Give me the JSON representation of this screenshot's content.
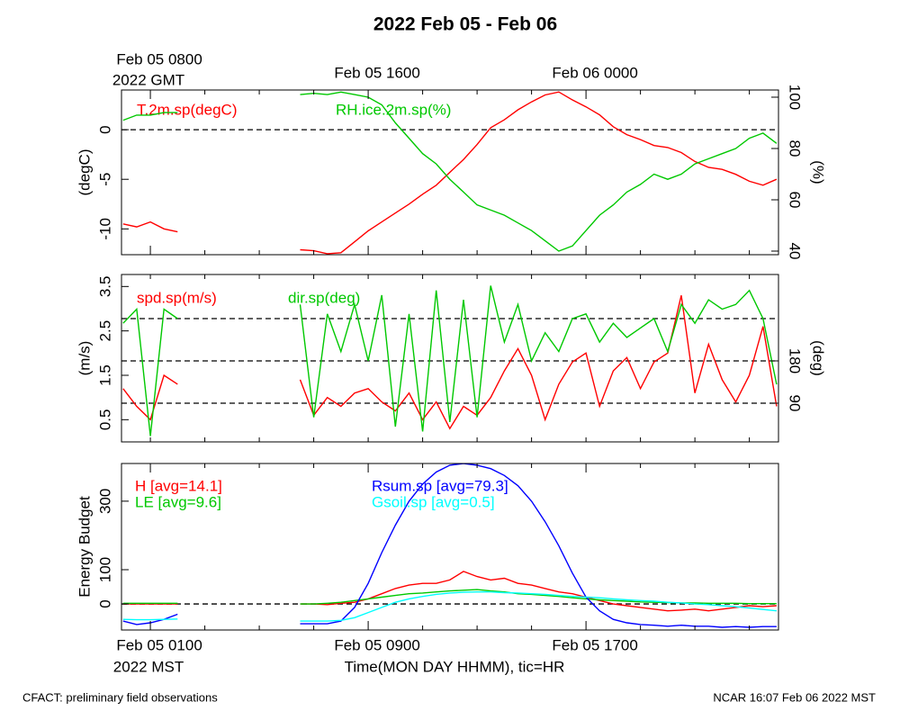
{
  "title": "2022 Feb 05 - Feb 06",
  "footer_left": "CFACT: preliminary field observations",
  "footer_right": "NCAR 16:07 Feb 06 2022 MST",
  "chart_data": [
    {
      "type": "line",
      "x": [
        -1,
        -0.5,
        0,
        0.5,
        1,
        3,
        5.5,
        6,
        6.5,
        7,
        7.5,
        8,
        8.5,
        9,
        9.5,
        10,
        10.5,
        11,
        11.5,
        12,
        12.5,
        13,
        13.5,
        14,
        14.5,
        15,
        15.5,
        16,
        16.5,
        17,
        17.5,
        18,
        18.5,
        19,
        19.5,
        20,
        20.5,
        21,
        21.5,
        22,
        22.5,
        23
      ],
      "xlim": [
        -1.06,
        23.07
      ],
      "xticks": [
        {
          "value": 0,
          "label": "Feb 05 0800"
        },
        {
          "value": 8,
          "label": "Feb 05 1600"
        },
        {
          "value": 16,
          "label": "Feb 06 0000"
        }
      ],
      "x_year_label": "2022 GMT",
      "xminorticks": [
        2,
        4,
        6,
        10,
        12,
        14,
        18,
        20,
        22
      ],
      "ylabel": "(degC)",
      "ylim": [
        -12.6,
        4
      ],
      "yticks": [
        -10,
        -5,
        0
      ],
      "y2label": "(%)",
      "y2lim": [
        38.6,
        102.8
      ],
      "y2ticks": [
        40,
        60,
        80,
        100
      ],
      "hlines": [
        0
      ],
      "series": [
        {
          "name": "T.2m.sp(degC)",
          "color": "#ff0000",
          "values": [
            -9.5,
            -9.8,
            -9.3,
            -10,
            -10.3,
            null,
            -12.1,
            -12.2,
            -12.5,
            -12.4,
            -11.3,
            -10.2,
            -9.3,
            -8.4,
            -7.5,
            -6.5,
            -5.6,
            -4.3,
            -3.0,
            -1.5,
            0.2,
            1.0,
            2.0,
            2.8,
            3.5,
            3.8,
            3.0,
            2.3,
            1.5,
            0.3,
            -0.5,
            -1.0,
            -1.6,
            -1.8,
            -2.3,
            -3.2,
            -3.8,
            -4.0,
            -4.5,
            -5.2,
            -5.6,
            -5.0
          ]
        },
        {
          "name": "RH.ice.2m.sp(%)",
          "color": "#00c800",
          "axis": "y2",
          "values": [
            91,
            93,
            93,
            94,
            94,
            null,
            101,
            101.5,
            101,
            102,
            101,
            100,
            97,
            90,
            84,
            78,
            74,
            68,
            63,
            58,
            56,
            54,
            51,
            48,
            44,
            40,
            42,
            48,
            54,
            58,
            63,
            66,
            70,
            68,
            70,
            74,
            76,
            78,
            80,
            84,
            86,
            82
          ]
        }
      ]
    },
    {
      "type": "line",
      "x": [
        -1,
        -0.5,
        0,
        0.5,
        1,
        3,
        5.5,
        6,
        6.5,
        7,
        7.5,
        8,
        8.5,
        9,
        9.5,
        10,
        10.5,
        11,
        11.5,
        12,
        12.5,
        13,
        13.5,
        14,
        14.5,
        15,
        15.5,
        16,
        16.5,
        17,
        17.5,
        18,
        18.5,
        19,
        19.5,
        20,
        20.5,
        21,
        21.5,
        22,
        22.5,
        23
      ],
      "xlim": [
        -1.06,
        23.07
      ],
      "xminorticks": [
        0,
        2,
        4,
        6,
        8,
        10,
        12,
        14,
        16,
        18,
        20,
        22
      ],
      "ylabel": "(m/s)",
      "ylim": [
        0,
        3.77
      ],
      "yticks": [
        0.5,
        1.5,
        2.5,
        3.5
      ],
      "y2label": "(deg)",
      "y2lim": [
        7.7,
        363.8
      ],
      "y2ticks": [
        90,
        180
      ],
      "y2_hlines": [
        90,
        180,
        270
      ],
      "series": [
        {
          "name": "spd.sp(m/s)",
          "color": "#ff0000",
          "values": [
            1.2,
            0.8,
            0.5,
            1.5,
            1.3,
            null,
            1.4,
            0.6,
            1.0,
            0.8,
            1.1,
            1.2,
            0.9,
            0.7,
            1.1,
            0.5,
            0.9,
            0.3,
            0.8,
            0.6,
            1.0,
            1.6,
            2.1,
            1.5,
            0.5,
            1.3,
            1.8,
            2.0,
            0.8,
            1.6,
            1.9,
            1.2,
            1.8,
            2.0,
            3.3,
            1.1,
            2.2,
            1.4,
            0.9,
            1.5,
            2.6,
            0.8
          ]
        },
        {
          "name": "dir.sp(deg)",
          "color": "#00c800",
          "axis": "y2",
          "values": [
            260,
            290,
            20,
            290,
            270,
            null,
            300,
            60,
            280,
            200,
            300,
            180,
            320,
            40,
            280,
            30,
            330,
            50,
            310,
            60,
            340,
            220,
            300,
            180,
            240,
            200,
            270,
            280,
            220,
            260,
            230,
            250,
            270,
            200,
            300,
            260,
            310,
            290,
            300,
            330,
            270,
            130
          ]
        }
      ]
    },
    {
      "type": "line",
      "x": [
        -1,
        -0.5,
        0,
        0.5,
        1,
        3,
        5.5,
        6,
        6.5,
        7,
        7.5,
        8,
        8.5,
        9,
        9.5,
        10,
        10.5,
        11,
        11.5,
        12,
        12.5,
        13,
        13.5,
        14,
        14.5,
        15,
        15.5,
        16,
        16.5,
        17,
        17.5,
        18,
        18.5,
        19,
        19.5,
        20,
        20.5,
        21,
        21.5,
        22,
        22.5,
        23
      ],
      "xlim": [
        -1.06,
        23.07
      ],
      "xticks": [
        {
          "value": 0,
          "label": "Feb 05 0100"
        },
        {
          "value": 8,
          "label": "Feb 05 0900"
        },
        {
          "value": 16,
          "label": "Feb 05 1700"
        }
      ],
      "x_year_label": "2022 MST",
      "xlabel": "Time(MON DAY HHMM), tic=HR",
      "xminorticks": [
        2,
        4,
        6,
        10,
        12,
        14,
        18,
        20,
        22
      ],
      "ylabel": "Energy Budget",
      "ylim": [
        -76,
        410
      ],
      "yticks": [
        0,
        100,
        300
      ],
      "hlines": [
        0
      ],
      "series": [
        {
          "name": "H [avg=14.1]",
          "color": "#ff0000",
          "values": [
            0,
            0,
            0,
            0,
            0,
            null,
            0,
            0,
            -2,
            2,
            5,
            15,
            30,
            45,
            55,
            60,
            60,
            70,
            95,
            80,
            70,
            75,
            60,
            55,
            45,
            35,
            30,
            20,
            10,
            0,
            -5,
            -10,
            -15,
            -20,
            -18,
            -15,
            -20,
            -15,
            -10,
            -5,
            -8,
            -5
          ]
        },
        {
          "name": "LE [avg=9.6]",
          "color": "#00c800",
          "values": [
            2,
            2,
            2,
            2,
            2,
            null,
            0,
            0,
            2,
            5,
            10,
            15,
            20,
            25,
            30,
            32,
            35,
            38,
            40,
            42,
            38,
            35,
            30,
            28,
            25,
            22,
            18,
            15,
            12,
            10,
            8,
            6,
            5,
            4,
            3,
            3,
            2,
            2,
            2,
            1,
            1,
            1
          ]
        },
        {
          "name": "Rsum.sp [avg=79.3]",
          "color": "#0000ff",
          "values": [
            -50,
            -60,
            -55,
            -45,
            -30,
            null,
            -58,
            -58,
            -58,
            -50,
            -10,
            60,
            150,
            230,
            300,
            350,
            385,
            405,
            410,
            405,
            395,
            375,
            345,
            300,
            240,
            170,
            90,
            20,
            -20,
            -45,
            -55,
            -60,
            -62,
            -65,
            -62,
            -65,
            -65,
            -68,
            -66,
            -68,
            -66,
            -66
          ]
        },
        {
          "name": "Gsoil.sp [avg=0.5]",
          "color": "#00ffff",
          "values": [
            -45,
            -46,
            -46,
            -45,
            -44,
            null,
            -50,
            -50,
            -50,
            -48,
            -40,
            -25,
            -10,
            5,
            15,
            22,
            28,
            32,
            34,
            35,
            35,
            33,
            32,
            30,
            28,
            25,
            22,
            20,
            18,
            15,
            12,
            10,
            8,
            5,
            3,
            0,
            -2,
            -5,
            -8,
            -12,
            -16,
            -20
          ]
        }
      ]
    }
  ]
}
